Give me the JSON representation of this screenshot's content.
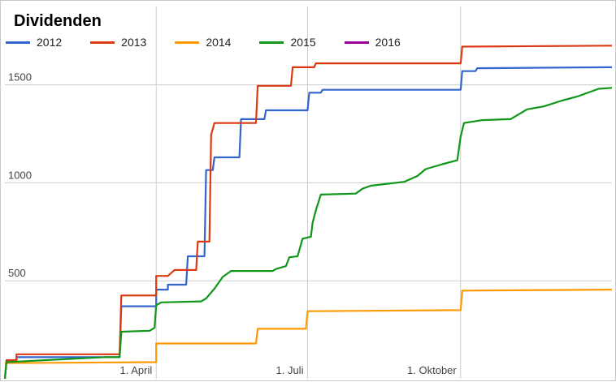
{
  "chart_data": {
    "type": "line",
    "title": "Dividenden",
    "xlabel": "",
    "ylabel": "",
    "legend_position": "top-left",
    "grid": true,
    "xlim": [
      "2016-01-01",
      "2016-12-31"
    ],
    "ylim": [
      0,
      1900
    ],
    "x_ticks": [
      {
        "date": "2016-04-01",
        "label": "1. April"
      },
      {
        "date": "2016-07-01",
        "label": "1. Juli"
      },
      {
        "date": "2016-10-01",
        "label": "1. Oktober"
      }
    ],
    "y_ticks": [
      {
        "value": 500,
        "label": "500"
      },
      {
        "value": 1000,
        "label": "1000"
      },
      {
        "value": 1500,
        "label": "1500"
      }
    ],
    "series": [
      {
        "name": "2012",
        "color": "#3366cc",
        "points": [
          [
            "2016-01-01",
            0
          ],
          [
            "2016-01-02",
            95
          ],
          [
            "2016-01-08",
            95
          ],
          [
            "2016-01-08",
            110
          ],
          [
            "2016-03-10",
            110
          ],
          [
            "2016-03-11",
            370
          ],
          [
            "2016-04-01",
            370
          ],
          [
            "2016-04-01",
            455
          ],
          [
            "2016-04-08",
            455
          ],
          [
            "2016-04-08",
            480
          ],
          [
            "2016-04-19",
            480
          ],
          [
            "2016-04-20",
            625
          ],
          [
            "2016-04-30",
            625
          ],
          [
            "2016-05-01",
            1065
          ],
          [
            "2016-05-05",
            1065
          ],
          [
            "2016-05-06",
            1130
          ],
          [
            "2016-05-21",
            1130
          ],
          [
            "2016-05-22",
            1325
          ],
          [
            "2016-06-05",
            1325
          ],
          [
            "2016-06-06",
            1370
          ],
          [
            "2016-07-01",
            1370
          ],
          [
            "2016-07-02",
            1460
          ],
          [
            "2016-07-09",
            1460
          ],
          [
            "2016-07-10",
            1475
          ],
          [
            "2016-10-01",
            1475
          ],
          [
            "2016-10-02",
            1570
          ],
          [
            "2016-10-10",
            1570
          ],
          [
            "2016-10-11",
            1585
          ],
          [
            "2016-12-31",
            1590
          ]
        ]
      },
      {
        "name": "2013",
        "color": "#dc3912",
        "points": [
          [
            "2016-01-01",
            0
          ],
          [
            "2016-01-02",
            95
          ],
          [
            "2016-01-08",
            95
          ],
          [
            "2016-01-08",
            125
          ],
          [
            "2016-03-10",
            125
          ],
          [
            "2016-03-11",
            425
          ],
          [
            "2016-04-01",
            425
          ],
          [
            "2016-04-01",
            525
          ],
          [
            "2016-04-08",
            525
          ],
          [
            "2016-04-12",
            555
          ],
          [
            "2016-04-25",
            555
          ],
          [
            "2016-04-26",
            700
          ],
          [
            "2016-05-03",
            700
          ],
          [
            "2016-05-04",
            1245
          ],
          [
            "2016-05-06",
            1305
          ],
          [
            "2016-05-31",
            1305
          ],
          [
            "2016-06-01",
            1495
          ],
          [
            "2016-06-21",
            1495
          ],
          [
            "2016-06-22",
            1590
          ],
          [
            "2016-07-05",
            1590
          ],
          [
            "2016-07-06",
            1610
          ],
          [
            "2016-10-01",
            1610
          ],
          [
            "2016-10-02",
            1695
          ],
          [
            "2016-12-31",
            1700
          ]
        ]
      },
      {
        "name": "2014",
        "color": "#ff9900",
        "points": [
          [
            "2016-01-01",
            80
          ],
          [
            "2016-04-01",
            85
          ],
          [
            "2016-04-01",
            180
          ],
          [
            "2016-05-31",
            180
          ],
          [
            "2016-06-01",
            255
          ],
          [
            "2016-06-30",
            255
          ],
          [
            "2016-07-01",
            345
          ],
          [
            "2016-10-01",
            350
          ],
          [
            "2016-10-02",
            450
          ],
          [
            "2016-12-31",
            455
          ]
        ]
      },
      {
        "name": "2015",
        "color": "#109618",
        "points": [
          [
            "2016-01-01",
            0
          ],
          [
            "2016-01-02",
            85
          ],
          [
            "2016-03-01",
            110
          ],
          [
            "2016-03-10",
            110
          ],
          [
            "2016-03-11",
            240
          ],
          [
            "2016-03-28",
            245
          ],
          [
            "2016-03-31",
            260
          ],
          [
            "2016-04-01",
            375
          ],
          [
            "2016-04-04",
            390
          ],
          [
            "2016-04-28",
            395
          ],
          [
            "2016-05-01",
            410
          ],
          [
            "2016-05-06",
            460
          ],
          [
            "2016-05-11",
            520
          ],
          [
            "2016-05-16",
            550
          ],
          [
            "2016-06-10",
            550
          ],
          [
            "2016-06-12",
            560
          ],
          [
            "2016-06-18",
            575
          ],
          [
            "2016-06-20",
            620
          ],
          [
            "2016-06-25",
            625
          ],
          [
            "2016-06-28",
            715
          ],
          [
            "2016-07-03",
            725
          ],
          [
            "2016-07-04",
            795
          ],
          [
            "2016-07-06",
            860
          ],
          [
            "2016-07-09",
            940
          ],
          [
            "2016-07-30",
            945
          ],
          [
            "2016-08-03",
            970
          ],
          [
            "2016-08-08",
            985
          ],
          [
            "2016-08-28",
            1005
          ],
          [
            "2016-09-05",
            1035
          ],
          [
            "2016-09-10",
            1070
          ],
          [
            "2016-09-20",
            1095
          ],
          [
            "2016-09-29",
            1115
          ],
          [
            "2016-10-01",
            1235
          ],
          [
            "2016-10-03",
            1305
          ],
          [
            "2016-10-14",
            1320
          ],
          [
            "2016-10-31",
            1325
          ],
          [
            "2016-11-05",
            1350
          ],
          [
            "2016-11-10",
            1375
          ],
          [
            "2016-11-20",
            1390
          ],
          [
            "2016-12-01",
            1420
          ],
          [
            "2016-12-10",
            1440
          ],
          [
            "2016-12-23",
            1480
          ],
          [
            "2016-12-31",
            1485
          ]
        ]
      },
      {
        "name": "2016",
        "color": "#990099",
        "points": []
      }
    ]
  }
}
